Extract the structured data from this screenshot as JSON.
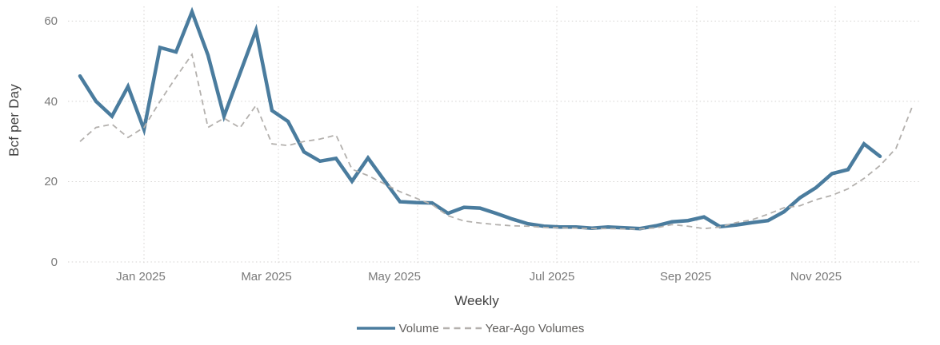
{
  "chart_data": {
    "type": "line",
    "title": "",
    "xlabel": "Weekly",
    "ylabel": "Bcf per Day",
    "ylim": [
      0,
      65
    ],
    "grid": "dotted",
    "legend_position": "bottom-center",
    "y_ticks": [
      0,
      20,
      40,
      60
    ],
    "x_ticks": [
      {
        "label": "Jan 2025",
        "label_week": 3.8,
        "gridline_week": 4.0
      },
      {
        "label": "Mar 2025",
        "label_week": 11.65,
        "gridline_week": 12.4
      },
      {
        "label": "May 2025",
        "label_week": 19.65,
        "gridline_week": 21.1
      },
      {
        "label": "Jul 2025",
        "label_week": 29.5,
        "gridline_week": 29.8
      },
      {
        "label": "Sep 2025",
        "label_week": 37.85,
        "gridline_week": 38.55
      },
      {
        "label": "Nov 2025",
        "label_week": 46.0,
        "gridline_week": 47.2
      }
    ],
    "x_unit": "week index (weekly data, Dec 2024 - Dec 2025)",
    "series": [
      {
        "name": "Volume",
        "style": "solid",
        "color": "#4a7c9e",
        "stroke_width": 4.5,
        "start_week": 0,
        "values": [
          46.3,
          40,
          36.3,
          43.7,
          33,
          53.4,
          52.3,
          62.3,
          51.5,
          36.3,
          47,
          57.7,
          37.7,
          35,
          27.4,
          25.1,
          25.8,
          20.1,
          25.9,
          20.4,
          15,
          14.8,
          14.7,
          12.1,
          13.6,
          13.4,
          12.1,
          10.7,
          9.5,
          8.9,
          8.7,
          8.7,
          8.4,
          8.7,
          8.5,
          8.3,
          9,
          10,
          10.3,
          11.2,
          8.8,
          9.2,
          9.8,
          10.3,
          12.5,
          16,
          18.5,
          22,
          23,
          29.4,
          26.3
        ]
      },
      {
        "name": "Year-Ago Volumes",
        "style": "dashed",
        "color": "#b3b0ad",
        "stroke_width": 1.8,
        "start_week": 0,
        "values": [
          30,
          33.5,
          34.3,
          31,
          33.5,
          40,
          46,
          51.7,
          33.5,
          35.8,
          33.4,
          39,
          29.4,
          29,
          30,
          30.6,
          31.6,
          23.1,
          21.5,
          19.5,
          17.5,
          15.9,
          14.3,
          11.5,
          10.2,
          9.7,
          9.3,
          9,
          8.9,
          8.6,
          8.5,
          8.4,
          8.3,
          8.3,
          8.2,
          8.2,
          8.5,
          9.3,
          8.9,
          8.3,
          8.7,
          9.8,
          10.5,
          11.9,
          13.5,
          14,
          15.5,
          16.6,
          18.2,
          20.8,
          24,
          28.3,
          38.5
        ]
      }
    ],
    "gridline_color": "#d4d2d0"
  }
}
